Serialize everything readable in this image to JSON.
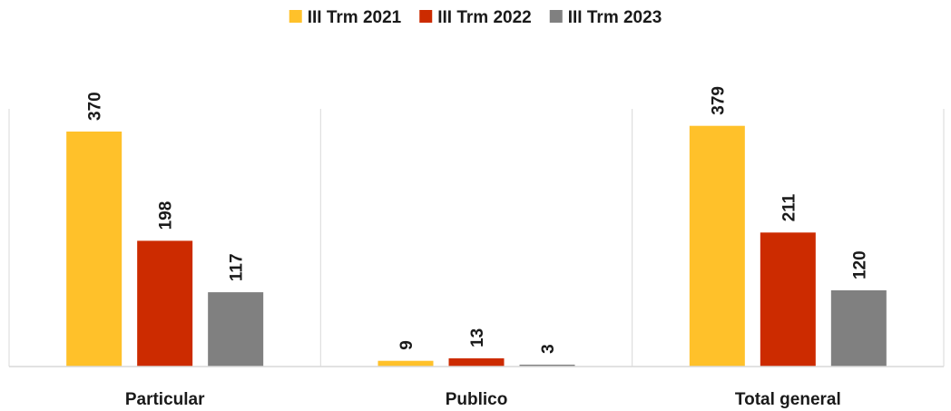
{
  "chart_data": {
    "type": "bar",
    "categories": [
      "Particular",
      "Publico",
      "Total general"
    ],
    "series": [
      {
        "name": "III Trm 2021",
        "values": [
          370,
          9,
          379
        ],
        "color": "#FFC12A"
      },
      {
        "name": "III Trm 2022",
        "values": [
          198,
          13,
          211
        ],
        "color": "#CC2B00"
      },
      {
        "name": "III Trm 2023",
        "values": [
          117,
          3,
          120
        ],
        "color": "#808080"
      }
    ],
    "title": "",
    "xlabel": "",
    "ylabel": "",
    "ylim": [
      0,
      400
    ],
    "grid": false,
    "legend_position": "top-center",
    "data_labels": "rotated-vertical"
  }
}
